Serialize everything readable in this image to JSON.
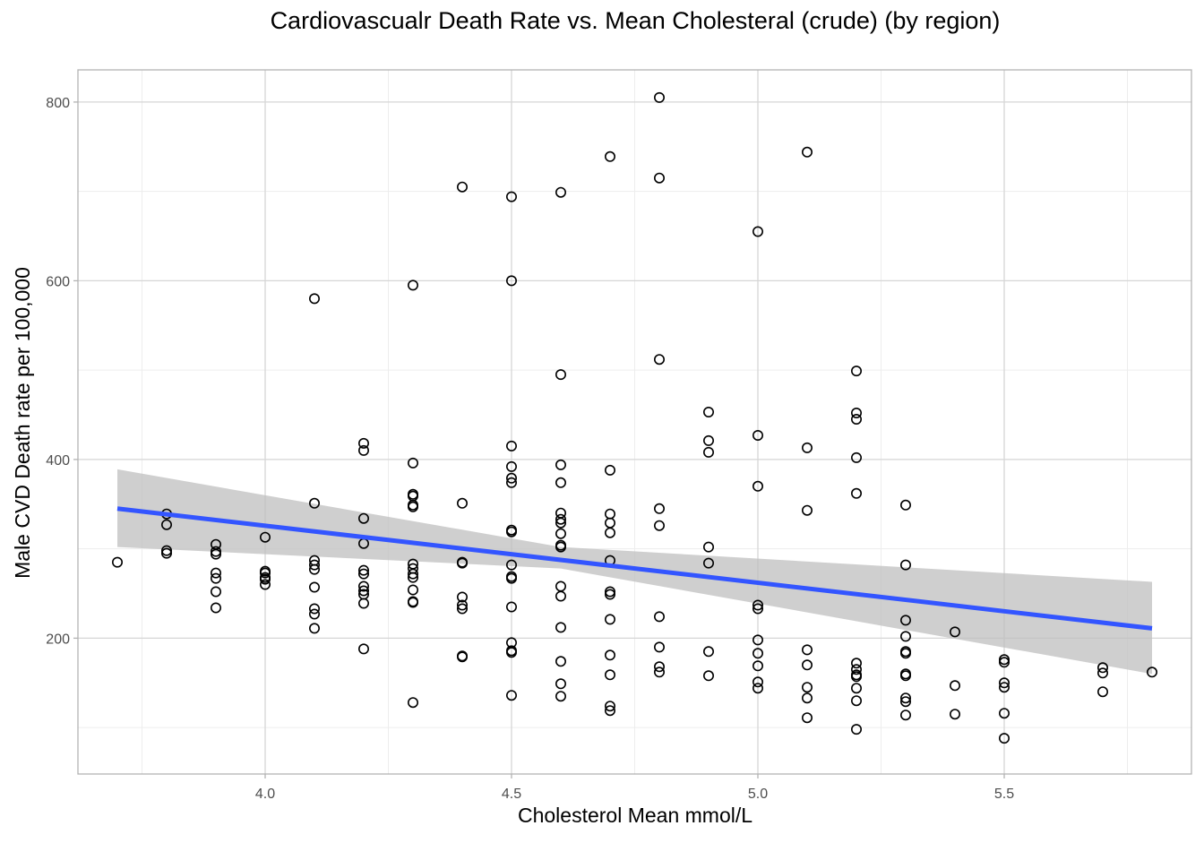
{
  "chart_data": {
    "type": "scatter",
    "title": "Cardiovascualr Death Rate vs. Mean Cholesteral (crude) (by region)",
    "xlabel": "Cholesterol Mean mmol/L",
    "ylabel": "Male CVD Death rate per 100,000",
    "xlim": [
      3.62,
      5.88
    ],
    "ylim": [
      48,
      836
    ],
    "xticks": [
      4.0,
      4.5,
      5.0,
      5.5
    ],
    "xtick_labels": [
      "4.0",
      "4.5",
      "5.0",
      "5.5"
    ],
    "yticks": [
      200,
      400,
      600,
      800
    ],
    "ytick_labels": [
      "200",
      "400",
      "600",
      "800"
    ],
    "grid": true,
    "theme": "light",
    "marker": "open-circle",
    "colors": {
      "points": "#000000",
      "fit_line": "#3355ff",
      "ribbon": "#bfbfbf",
      "grid_major": "#d6d6d6",
      "grid_minor": "#ededed",
      "panel_border": "#b3b3b3"
    },
    "fit": {
      "method": "linear",
      "x": [
        3.7,
        5.8
      ],
      "y": [
        345,
        211
      ],
      "ci_upper": [
        389,
        263
      ],
      "ci_lower": [
        302,
        160
      ],
      "ci_mid_x": 4.6,
      "ci_mid_upper": 302,
      "ci_mid_lower": 278
    },
    "points": [
      [
        3.7,
        285
      ],
      [
        3.8,
        339
      ],
      [
        3.8,
        327
      ],
      [
        3.8,
        298
      ],
      [
        3.8,
        295
      ],
      [
        3.9,
        305
      ],
      [
        3.9,
        297
      ],
      [
        3.9,
        294
      ],
      [
        3.9,
        273
      ],
      [
        3.9,
        267
      ],
      [
        3.9,
        252
      ],
      [
        3.9,
        234
      ],
      [
        4.0,
        313
      ],
      [
        4.0,
        275
      ],
      [
        4.0,
        273
      ],
      [
        4.0,
        268
      ],
      [
        4.0,
        266
      ],
      [
        4.0,
        260
      ],
      [
        4.1,
        580
      ],
      [
        4.1,
        351
      ],
      [
        4.1,
        287
      ],
      [
        4.1,
        282
      ],
      [
        4.1,
        277
      ],
      [
        4.1,
        257
      ],
      [
        4.1,
        233
      ],
      [
        4.1,
        227
      ],
      [
        4.1,
        211
      ],
      [
        4.2,
        418
      ],
      [
        4.2,
        410
      ],
      [
        4.2,
        334
      ],
      [
        4.2,
        306
      ],
      [
        4.2,
        276
      ],
      [
        4.2,
        272
      ],
      [
        4.2,
        258
      ],
      [
        4.2,
        253
      ],
      [
        4.2,
        249
      ],
      [
        4.2,
        239
      ],
      [
        4.2,
        188
      ],
      [
        4.3,
        595
      ],
      [
        4.3,
        396
      ],
      [
        4.3,
        361
      ],
      [
        4.3,
        359
      ],
      [
        4.3,
        349
      ],
      [
        4.3,
        347
      ],
      [
        4.3,
        283
      ],
      [
        4.3,
        278
      ],
      [
        4.3,
        272
      ],
      [
        4.3,
        268
      ],
      [
        4.3,
        254
      ],
      [
        4.3,
        241
      ],
      [
        4.3,
        240
      ],
      [
        4.3,
        128
      ],
      [
        4.4,
        705
      ],
      [
        4.4,
        351
      ],
      [
        4.4,
        285
      ],
      [
        4.4,
        284
      ],
      [
        4.4,
        246
      ],
      [
        4.4,
        237
      ],
      [
        4.4,
        233
      ],
      [
        4.4,
        180
      ],
      [
        4.4,
        179
      ],
      [
        4.5,
        694
      ],
      [
        4.5,
        600
      ],
      [
        4.5,
        415
      ],
      [
        4.5,
        392
      ],
      [
        4.5,
        379
      ],
      [
        4.5,
        374
      ],
      [
        4.5,
        321
      ],
      [
        4.5,
        319
      ],
      [
        4.5,
        282
      ],
      [
        4.5,
        269
      ],
      [
        4.5,
        267
      ],
      [
        4.5,
        235
      ],
      [
        4.5,
        195
      ],
      [
        4.5,
        186
      ],
      [
        4.5,
        184
      ],
      [
        4.5,
        136
      ],
      [
        4.6,
        699
      ],
      [
        4.6,
        495
      ],
      [
        4.6,
        394
      ],
      [
        4.6,
        374
      ],
      [
        4.6,
        340
      ],
      [
        4.6,
        333
      ],
      [
        4.6,
        329
      ],
      [
        4.6,
        317
      ],
      [
        4.6,
        304
      ],
      [
        4.6,
        302
      ],
      [
        4.6,
        258
      ],
      [
        4.6,
        247
      ],
      [
        4.6,
        212
      ],
      [
        4.6,
        174
      ],
      [
        4.6,
        149
      ],
      [
        4.6,
        135
      ],
      [
        4.7,
        739
      ],
      [
        4.7,
        388
      ],
      [
        4.7,
        339
      ],
      [
        4.7,
        329
      ],
      [
        4.7,
        318
      ],
      [
        4.7,
        287
      ],
      [
        4.7,
        252
      ],
      [
        4.7,
        249
      ],
      [
        4.7,
        221
      ],
      [
        4.7,
        181
      ],
      [
        4.7,
        159
      ],
      [
        4.7,
        124
      ],
      [
        4.7,
        119
      ],
      [
        4.8,
        805
      ],
      [
        4.8,
        715
      ],
      [
        4.8,
        512
      ],
      [
        4.8,
        345
      ],
      [
        4.8,
        326
      ],
      [
        4.8,
        224
      ],
      [
        4.8,
        190
      ],
      [
        4.8,
        168
      ],
      [
        4.8,
        162
      ],
      [
        4.9,
        453
      ],
      [
        4.9,
        421
      ],
      [
        4.9,
        408
      ],
      [
        4.9,
        302
      ],
      [
        4.9,
        284
      ],
      [
        4.9,
        185
      ],
      [
        4.9,
        158
      ],
      [
        5.0,
        655
      ],
      [
        5.0,
        427
      ],
      [
        5.0,
        370
      ],
      [
        5.0,
        237
      ],
      [
        5.0,
        233
      ],
      [
        5.0,
        198
      ],
      [
        5.0,
        183
      ],
      [
        5.0,
        169
      ],
      [
        5.0,
        151
      ],
      [
        5.0,
        144
      ],
      [
        5.1,
        744
      ],
      [
        5.1,
        413
      ],
      [
        5.1,
        343
      ],
      [
        5.1,
        187
      ],
      [
        5.1,
        170
      ],
      [
        5.1,
        145
      ],
      [
        5.1,
        133
      ],
      [
        5.1,
        111
      ],
      [
        5.2,
        499
      ],
      [
        5.2,
        452
      ],
      [
        5.2,
        445
      ],
      [
        5.2,
        402
      ],
      [
        5.2,
        362
      ],
      [
        5.2,
        172
      ],
      [
        5.2,
        165
      ],
      [
        5.2,
        159
      ],
      [
        5.2,
        157
      ],
      [
        5.2,
        144
      ],
      [
        5.2,
        130
      ],
      [
        5.2,
        98
      ],
      [
        5.3,
        349
      ],
      [
        5.3,
        282
      ],
      [
        5.3,
        220
      ],
      [
        5.3,
        202
      ],
      [
        5.3,
        185
      ],
      [
        5.3,
        183
      ],
      [
        5.3,
        160
      ],
      [
        5.3,
        158
      ],
      [
        5.3,
        133
      ],
      [
        5.3,
        129
      ],
      [
        5.3,
        114
      ],
      [
        5.4,
        207
      ],
      [
        5.4,
        147
      ],
      [
        5.4,
        115
      ],
      [
        5.5,
        176
      ],
      [
        5.5,
        173
      ],
      [
        5.5,
        150
      ],
      [
        5.5,
        145
      ],
      [
        5.5,
        116
      ],
      [
        5.5,
        88
      ],
      [
        5.7,
        167
      ],
      [
        5.7,
        161
      ],
      [
        5.7,
        140
      ],
      [
        5.8,
        162
      ]
    ]
  }
}
